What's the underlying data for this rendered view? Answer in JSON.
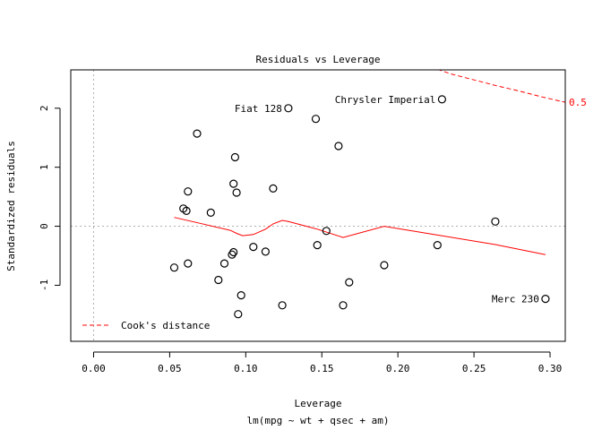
{
  "chart_data": {
    "type": "scatter",
    "title": "Residuals vs Leverage",
    "xlabel": "Leverage",
    "subtitle": "lm(mpg ~ wt + qsec + am)",
    "ylabel": "Standardized residuals",
    "xlim": [
      -0.015,
      0.31
    ],
    "ylim": [
      -1.95,
      2.65
    ],
    "x_ticks": [
      0.0,
      0.05,
      0.1,
      0.15,
      0.2,
      0.25,
      0.3
    ],
    "x_tick_labels": [
      "0.00",
      "0.05",
      "0.10",
      "0.15",
      "0.20",
      "0.25",
      "0.30"
    ],
    "y_ticks": [
      -1,
      0,
      1,
      2
    ],
    "y_tick_labels": [
      "-1",
      "0",
      "1",
      "2"
    ],
    "points": [
      {
        "x": 0.053,
        "y": -0.7
      },
      {
        "x": 0.059,
        "y": 0.3
      },
      {
        "x": 0.061,
        "y": 0.26
      },
      {
        "x": 0.062,
        "y": 0.59
      },
      {
        "x": 0.062,
        "y": -0.63
      },
      {
        "x": 0.068,
        "y": 1.57
      },
      {
        "x": 0.077,
        "y": 0.23
      },
      {
        "x": 0.082,
        "y": -0.91
      },
      {
        "x": 0.086,
        "y": -0.63
      },
      {
        "x": 0.091,
        "y": -0.48
      },
      {
        "x": 0.092,
        "y": -0.44
      },
      {
        "x": 0.092,
        "y": 0.72
      },
      {
        "x": 0.093,
        "y": 1.17
      },
      {
        "x": 0.094,
        "y": 0.57
      },
      {
        "x": 0.095,
        "y": -1.49
      },
      {
        "x": 0.097,
        "y": -1.17
      },
      {
        "x": 0.105,
        "y": -0.35
      },
      {
        "x": 0.113,
        "y": -0.43
      },
      {
        "x": 0.118,
        "y": 0.64
      },
      {
        "x": 0.124,
        "y": -1.34
      },
      {
        "x": 0.128,
        "y": 2.0
      },
      {
        "x": 0.146,
        "y": 1.82
      },
      {
        "x": 0.147,
        "y": -0.32
      },
      {
        "x": 0.153,
        "y": -0.08
      },
      {
        "x": 0.161,
        "y": 1.36
      },
      {
        "x": 0.164,
        "y": -1.34
      },
      {
        "x": 0.168,
        "y": -0.95
      },
      {
        "x": 0.191,
        "y": -0.66
      },
      {
        "x": 0.226,
        "y": -0.32
      },
      {
        "x": 0.229,
        "y": 2.15
      },
      {
        "x": 0.264,
        "y": 0.08
      },
      {
        "x": 0.297,
        "y": -1.23
      }
    ],
    "labels": [
      {
        "text": "Fiat 128",
        "x": 0.128,
        "y": 2.0
      },
      {
        "text": "Chrysler Imperial",
        "x": 0.229,
        "y": 2.15
      },
      {
        "text": "Merc 230",
        "x": 0.297,
        "y": -1.23
      }
    ],
    "smooth_line": [
      [
        0.053,
        0.15
      ],
      [
        0.07,
        0.05
      ],
      [
        0.09,
        -0.07
      ],
      [
        0.094,
        -0.12
      ],
      [
        0.098,
        -0.16
      ],
      [
        0.105,
        -0.14
      ],
      [
        0.113,
        -0.05
      ],
      [
        0.118,
        0.04
      ],
      [
        0.124,
        0.1
      ],
      [
        0.128,
        0.08
      ],
      [
        0.147,
        -0.05
      ],
      [
        0.164,
        -0.19
      ],
      [
        0.191,
        0.0
      ],
      [
        0.226,
        -0.15
      ],
      [
        0.264,
        -0.31
      ],
      [
        0.297,
        -0.48
      ]
    ],
    "cooks_line": [
      [
        0.226,
        2.66
      ],
      [
        0.235,
        2.58
      ],
      [
        0.25,
        2.48
      ],
      [
        0.265,
        2.38
      ],
      [
        0.28,
        2.29
      ],
      [
        0.295,
        2.19
      ],
      [
        0.31,
        2.1
      ]
    ],
    "cooks_label": "0.5",
    "legend": {
      "label": "Cook's distance",
      "position": "bottom-left"
    },
    "colors": {
      "smooth": "#ff0000",
      "cooks": "#ff0000",
      "points": "#000000",
      "reference": "#b0b0b0"
    }
  }
}
